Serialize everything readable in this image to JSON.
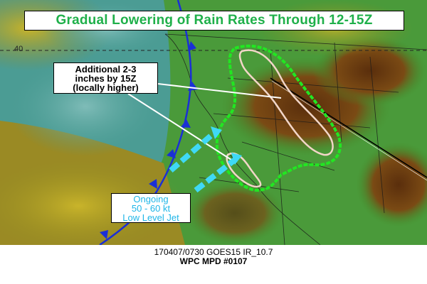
{
  "title": "Gradual Lowering of Rain Rates Through 12-15Z",
  "lat_label": "40",
  "callout_rain": {
    "lines": [
      "Additional 2-3",
      "inches by 15Z",
      "(locally higher)"
    ]
  },
  "callout_jet": {
    "lines": [
      "Ongoing",
      "50 - 60 kt",
      "Low Level Jet"
    ]
  },
  "caption": {
    "satellite": "170407/0730 GOES15 IR_10.7",
    "product": "WPC MPD #0107"
  },
  "colors": {
    "ocean_teal": "#4b9c94",
    "cloud_olive": "#a08a1e",
    "cloud_green": "#3a9a3a",
    "cloud_brown": "#6a3a10",
    "mpd_outline": "#22e622",
    "jet_arrow": "#3fd9f5",
    "front": "#1a2fd6",
    "title_text": "#1fb04a"
  }
}
